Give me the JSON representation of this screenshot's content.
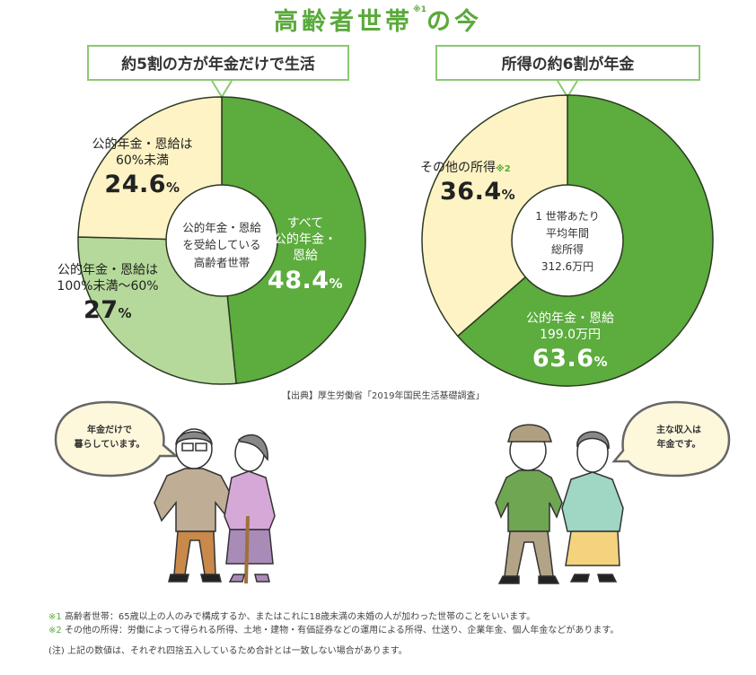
{
  "title": {
    "main": "高齢者世帯",
    "note_ref": "※1",
    "suffix": "の今"
  },
  "left_panel": {
    "callout": "約5割の方が年金だけで生活",
    "center_label": [
      "公的年金・恩給",
      "を受給している",
      "高齢者世帯"
    ],
    "slices": [
      {
        "label_lines": [
          "すべて",
          "公的年金・",
          "恩給"
        ],
        "value": "48.4",
        "unit": "%"
      },
      {
        "label_lines": [
          "公的年金・恩給は",
          "100%未満〜60%"
        ],
        "value": "27",
        "unit": "%"
      },
      {
        "label_lines": [
          "公的年金・恩給は",
          "60%未満"
        ],
        "value": "24.6",
        "unit": "%"
      }
    ]
  },
  "right_panel": {
    "callout": "所得の約6割が年金",
    "center_label": [
      "1 世帯あたり",
      "平均年間",
      "総所得",
      "312.6万円"
    ],
    "slices": [
      {
        "label_lines": [
          "公的年金・恩給",
          "199.0万円"
        ],
        "value": "63.6",
        "unit": "%"
      },
      {
        "label_lines": [
          "その他の所得"
        ],
        "note_ref": "※2",
        "value": "36.4",
        "unit": "%"
      }
    ]
  },
  "source": "【出典】厚生労働省「2019年国民生活基礎調査」",
  "bubbles": {
    "left": [
      "年金だけで",
      "暮らしています。"
    ],
    "right": [
      "主な収入は",
      "年金です。"
    ]
  },
  "footnotes": [
    {
      "mark": "※1",
      "text": "高齢者世帯：65歳以上の人のみで構成するか、またはこれに18歳未満の未婚の人が加わった世帯のことをいいます。"
    },
    {
      "mark": "※2",
      "text": "その他の所得：労働によって得られる所得、土地・建物・有価証券などの運用による所得、仕送り、企業年金、個人年金などがあります。"
    }
  ],
  "note": "(注) 上記の数値は、それぞれ四捨五入しているため合計とは一致しない場合があります。",
  "colors": {
    "brand_green": "#5aaa3c",
    "pie_green": "#5cac3e",
    "pie_light_green": "#b5d99a",
    "pie_cream": "#fdf3c4",
    "callout_border": "#8cc870"
  },
  "chart_data": [
    {
      "type": "pie",
      "title": "約5割の方が年金だけで生活",
      "center_text": "公的年金・恩給を受給している高齢者世帯",
      "categories": [
        "すべて公的年金・恩給",
        "公的年金・恩給は100%未満〜60%",
        "公的年金・恩給は60%未満"
      ],
      "values": [
        48.4,
        27.0,
        24.6
      ],
      "unit": "%",
      "colors": [
        "#5cac3e",
        "#b5d99a",
        "#fdf3c4"
      ],
      "start_angle": "12 o'clock",
      "direction": "clockwise",
      "donut": true
    },
    {
      "type": "pie",
      "title": "所得の約6割が年金",
      "center_text": "1世帯あたり平均年間総所得 312.6万円",
      "categories": [
        "公的年金・恩給 (199.0万円)",
        "その他の所得"
      ],
      "values": [
        63.6,
        36.4
      ],
      "unit": "%",
      "colors": [
        "#5cac3e",
        "#fdf3c4"
      ],
      "start_angle": "12 o'clock",
      "direction": "clockwise",
      "donut": true
    }
  ]
}
